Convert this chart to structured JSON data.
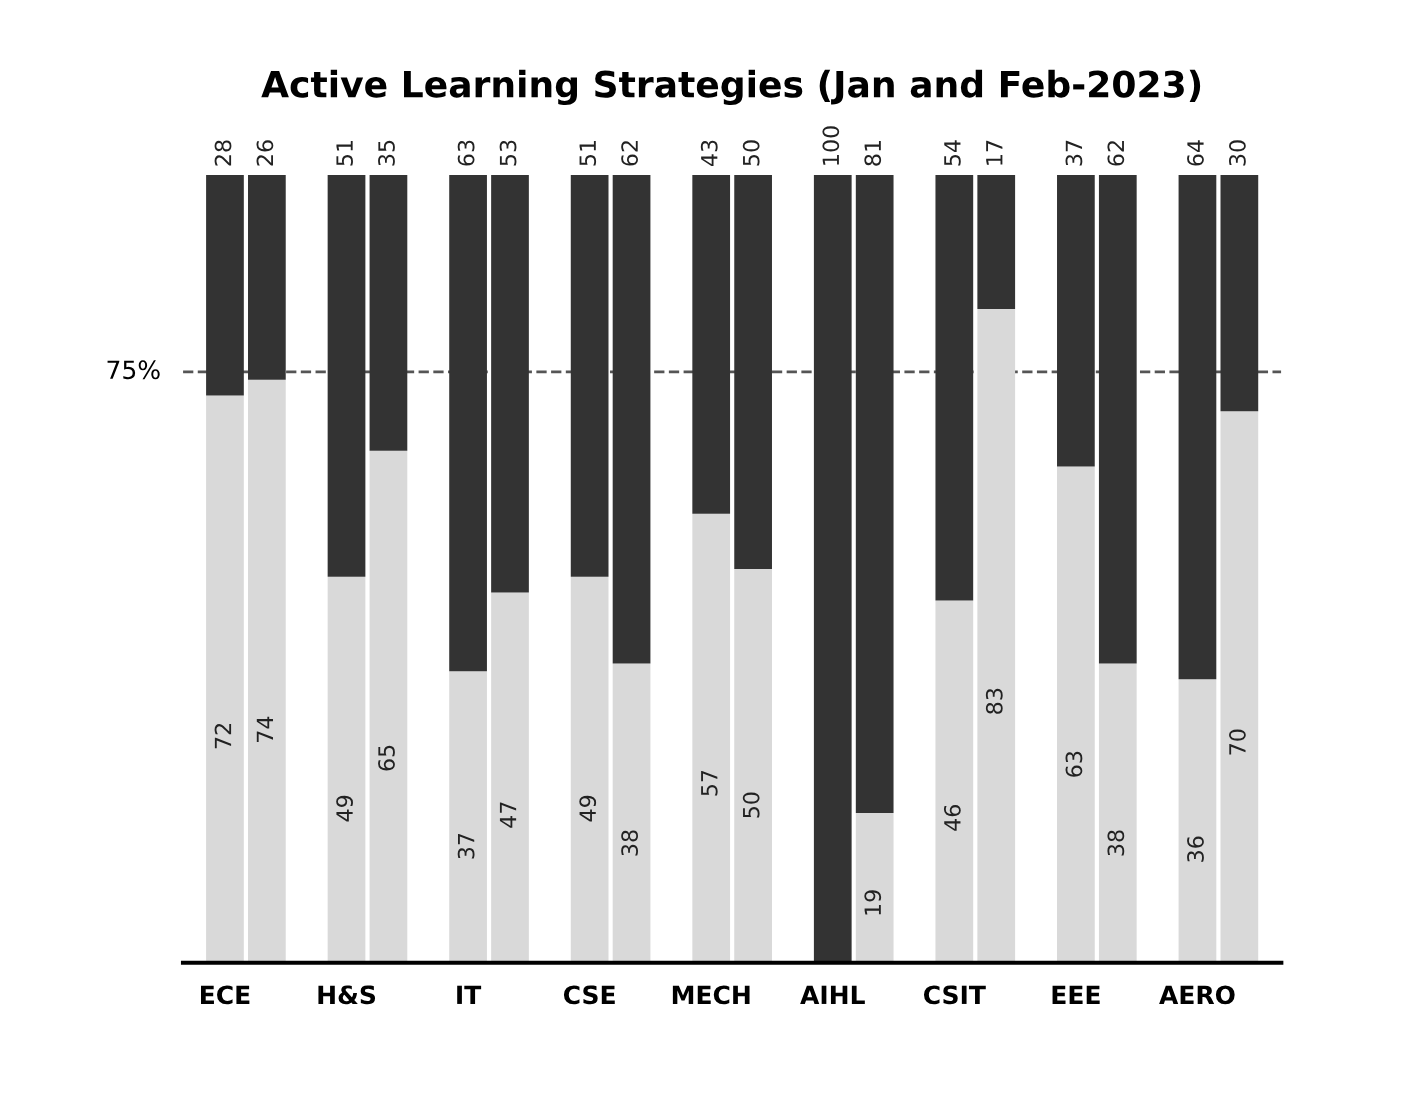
{
  "chart_data": {
    "type": "bar",
    "title": "Active Learning Strategies (Jan and Feb-2023)",
    "categories": [
      "ECE",
      null,
      "H&S",
      null,
      "IT",
      null,
      "CSE",
      null,
      "MECH",
      null,
      "AIHL",
      null,
      "CSIT",
      null,
      "EEE",
      null,
      "AERO",
      null
    ],
    "stacked": true,
    "grid": false,
    "ylim": [
      0,
      100
    ],
    "series": [
      {
        "color": "#d9d9d9",
        "values": [
          72,
          74,
          49,
          65,
          37,
          47,
          49,
          38,
          57,
          50,
          0,
          19,
          46,
          83,
          63,
          38,
          36,
          70
        ],
        "value_labels": [
          "72",
          "74",
          "49",
          "65",
          "37",
          "47",
          "49",
          "38",
          "57",
          "50",
          null,
          "19",
          "46",
          "83",
          "63",
          "38",
          "36",
          "70"
        ]
      },
      {
        "color": "#333333",
        "values": [
          28,
          26,
          51,
          35,
          63,
          53,
          51,
          62,
          43,
          50,
          100,
          81,
          54,
          17,
          37,
          62,
          64,
          30
        ],
        "value_labels": [
          "28",
          "26",
          "51",
          "35",
          "63",
          "53",
          "51",
          "62",
          "43",
          "50",
          "100",
          "81",
          "54",
          "17",
          "37",
          "62",
          "64",
          "30"
        ]
      }
    ],
    "ref_lines": [
      {
        "axis": "y",
        "value": 75,
        "label": "75%",
        "color": "#555555",
        "line_style": "dashed"
      }
    ]
  }
}
